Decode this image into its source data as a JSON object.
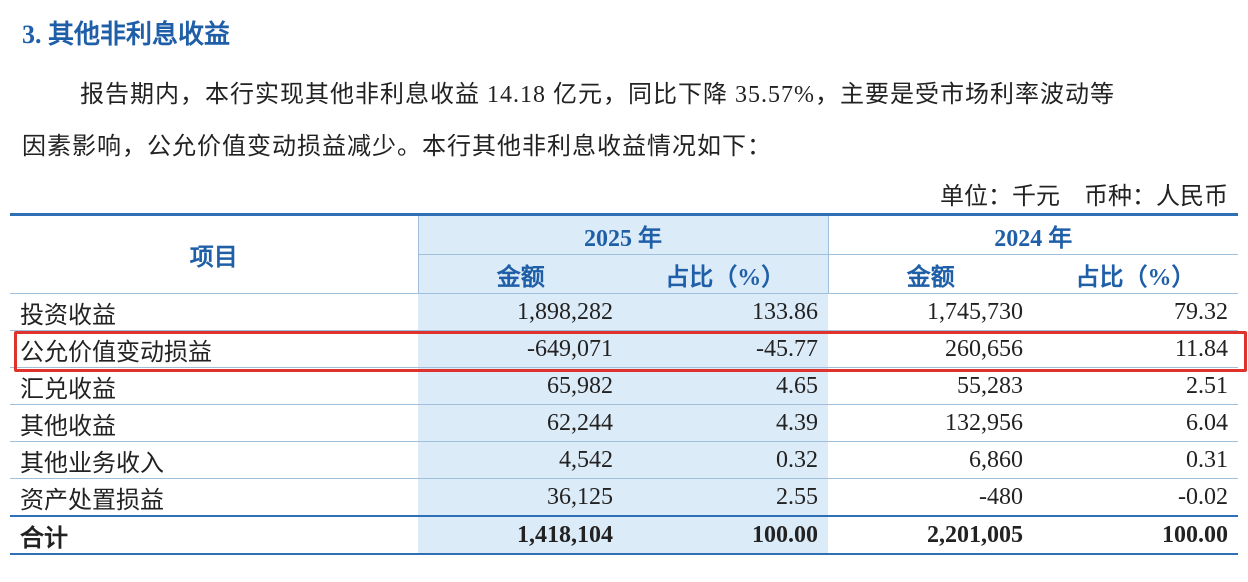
{
  "heading": "3. 其他非利息收益",
  "paragraph": [
    "报告期内，本行实现其他非利息收益 14.18 亿元，同比下降 35.57%，主要是受市场利率波动等",
    "因素影响，公允价值变动损益减少。本行其他非利息收益情况如下："
  ],
  "unit": "单位：千元　币种：人民币",
  "table": {
    "header": {
      "item": "项目",
      "years": [
        "2025 年",
        "2024 年"
      ],
      "columns": [
        "金额",
        "占比（%）",
        "金额",
        "占比（%）"
      ]
    },
    "rows": [
      [
        "投资收益",
        "1,898,282",
        "133.86",
        "1,745,730",
        "79.32"
      ],
      [
        "公允价值变动损益",
        "-649,071",
        "-45.77",
        "260,656",
        "11.84"
      ],
      [
        "汇兑收益",
        "65,982",
        "4.65",
        "55,283",
        "2.51"
      ],
      [
        "其他收益",
        "62,244",
        "4.39",
        "132,956",
        "6.04"
      ],
      [
        "其他业务收入",
        "4,542",
        "0.32",
        "6,860",
        "0.31"
      ],
      [
        "资产处置损益",
        "36,125",
        "2.55",
        "-480",
        "-0.02"
      ]
    ],
    "total": [
      "合计",
      "1,418,104",
      "100.00",
      "2,201,005",
      "100.00"
    ]
  }
}
